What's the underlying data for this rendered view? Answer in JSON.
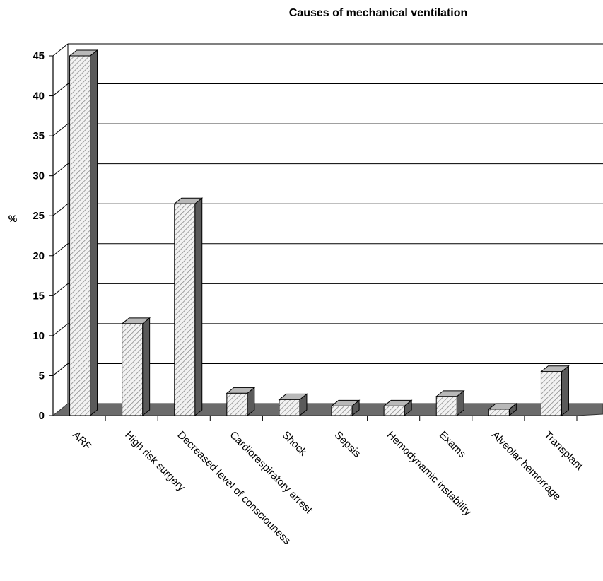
{
  "chart_data": {
    "type": "bar",
    "title": "Causes of mechanical ventilation",
    "xlabel": "",
    "ylabel": "%",
    "ylim": [
      0,
      45
    ],
    "yticks": [
      0,
      5,
      10,
      15,
      20,
      25,
      30,
      35,
      40,
      45
    ],
    "grid": true,
    "style": "3d-hatched",
    "categories": [
      "ARF",
      "High risk surgery",
      "Decreased level of consciouness",
      "Cardiorespiratory arrest",
      "Shock",
      "Sepsis",
      "Hemodynamic instability",
      "Exams",
      "Alveolar hemorrage",
      "Transplant"
    ],
    "values": [
      45,
      11.5,
      26.5,
      2.8,
      2,
      1.2,
      1.2,
      2.4,
      0.8,
      5.5
    ]
  },
  "colors": {
    "bar_front": "#f2f2f2",
    "bar_hatch": "#8a8a8a",
    "bar_side": "#5a5a5a",
    "bar_top": "#b8b8b8",
    "floor": "#6b6b6b",
    "gridline": "#000000"
  }
}
